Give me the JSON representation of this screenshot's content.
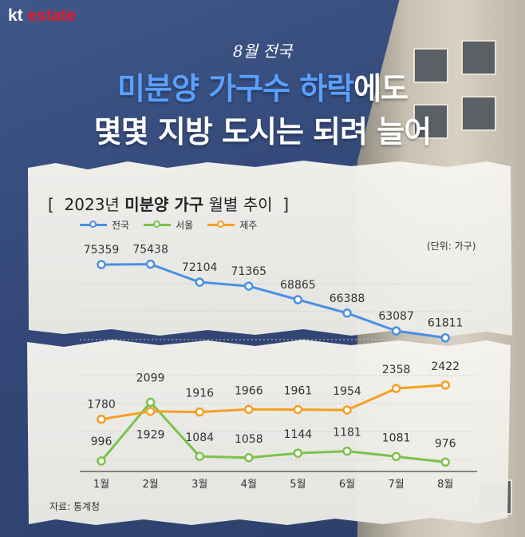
{
  "brand": {
    "logo_kt": "kt",
    "logo_estate": "estate"
  },
  "headline": {
    "subtitle": "8월 전국",
    "line1_highlight": "미분양 가구수 하락",
    "line1_rest": "에도",
    "line2": "몇몇 지방 도시는 되려 늘어"
  },
  "chart_data": {
    "type": "line",
    "title_bracket_open": "[",
    "title_prefix": "2023년",
    "title_bold": "미분양 가구",
    "title_suffix": "월별 추이",
    "title_bracket_close": "]",
    "unit": "(단위: 가구)",
    "categories": [
      "1월",
      "2월",
      "3월",
      "4월",
      "5월",
      "6월",
      "7월",
      "8월"
    ],
    "series": [
      {
        "name": "전국",
        "color": "#4a90e2",
        "values": [
          75359,
          75438,
          72104,
          71365,
          68865,
          66388,
          63087,
          61811
        ]
      },
      {
        "name": "서울",
        "color": "#7cc24a",
        "values": [
          996,
          2099,
          1084,
          1058,
          1144,
          1181,
          1081,
          976
        ]
      },
      {
        "name": "제주",
        "color": "#f5a023",
        "values": [
          1780,
          1929,
          1916,
          1966,
          1961,
          1954,
          2358,
          2422
        ]
      }
    ],
    "axis_break": true,
    "grid": "horizontal dashed",
    "legend_position": "top-left",
    "source": "자료: 통계청"
  }
}
